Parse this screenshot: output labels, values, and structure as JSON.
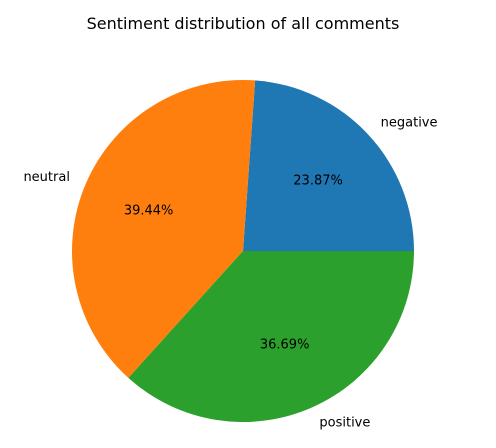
{
  "chart_data": {
    "type": "pie",
    "title": "Sentiment distribution of all comments",
    "categories": [
      "negative",
      "neutral",
      "positive"
    ],
    "values": [
      23.87,
      39.44,
      36.69
    ],
    "percent_labels": [
      "23.87%",
      "39.44%",
      "36.69%"
    ],
    "colors": [
      "#1f77b4",
      "#ff7f0e",
      "#2ca02c"
    ],
    "start_angle_deg": 0,
    "direction": "counterclockwise"
  }
}
